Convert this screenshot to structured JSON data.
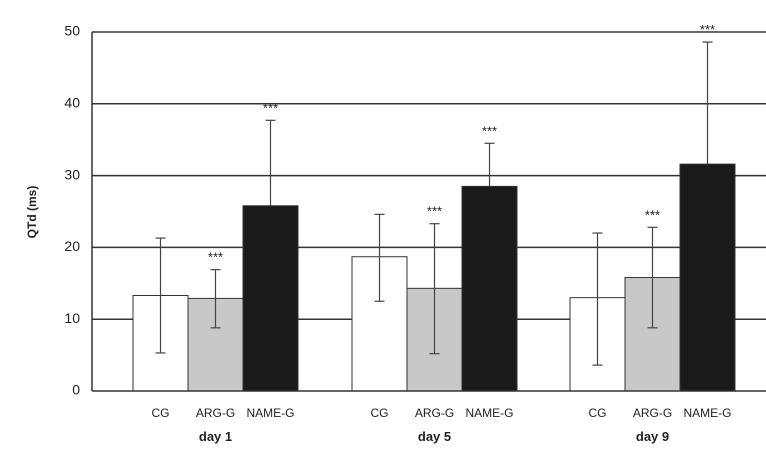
{
  "chart_data": {
    "type": "bar",
    "title": "",
    "xlabel": "",
    "ylabel": "QTd (ms)",
    "ylim": [
      0,
      50
    ],
    "yticks": [
      0,
      10,
      20,
      30,
      40,
      50
    ],
    "grid": "horizontal",
    "groups": [
      {
        "name": "day 1",
        "bars": [
          {
            "category": "CG",
            "value": 13.3,
            "error_upper": 21.3,
            "error_lower": 5.3,
            "color": "#ffffff",
            "sig": ""
          },
          {
            "category": "ARG-G",
            "value": 12.9,
            "error_upper": 16.9,
            "error_lower": 8.8,
            "color": "#c8c8c8",
            "sig": "***"
          },
          {
            "category": "NAME-G",
            "value": 25.8,
            "error_upper": 37.7,
            "error_lower": 25.8,
            "color": "#1a1a1a",
            "sig": "***"
          }
        ]
      },
      {
        "name": "day 5",
        "bars": [
          {
            "category": "CG",
            "value": 18.7,
            "error_upper": 24.6,
            "error_lower": 12.5,
            "color": "#ffffff",
            "sig": ""
          },
          {
            "category": "ARG-G",
            "value": 14.3,
            "error_upper": 23.3,
            "error_lower": 5.2,
            "color": "#c8c8c8",
            "sig": "***"
          },
          {
            "category": "NAME-G",
            "value": 28.5,
            "error_upper": 34.5,
            "error_lower": 28.5,
            "color": "#1a1a1a",
            "sig": "***"
          }
        ]
      },
      {
        "name": "day 9",
        "bars": [
          {
            "category": "CG",
            "value": 13.0,
            "error_upper": 22.0,
            "error_lower": 3.6,
            "color": "#ffffff",
            "sig": ""
          },
          {
            "category": "ARG-G",
            "value": 15.8,
            "error_upper": 22.8,
            "error_lower": 8.8,
            "color": "#c8c8c8",
            "sig": "***"
          },
          {
            "category": "NAME-G",
            "value": 31.6,
            "error_upper": 48.6,
            "error_lower": 31.6,
            "color": "#1a1a1a",
            "sig": "***"
          }
        ]
      }
    ]
  }
}
